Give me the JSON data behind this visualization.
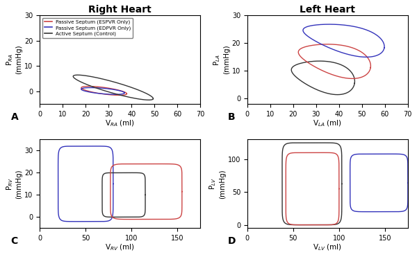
{
  "colors": {
    "red": "#CC4444",
    "blue": "#3333BB",
    "black": "#333333"
  },
  "legend_labels": [
    "Passive Septum (ESPVR Only)",
    "Passive Septum (EDPVR Only)",
    "Active Septum (Control)"
  ],
  "panels": {
    "A": {
      "xlabel": "V",
      "xlabel_sub": "RA",
      "xlabel_unit": " (ml)",
      "ylabel": "P",
      "ylabel_sub": "RA",
      "ylabel_unit": "\n(mmHg)",
      "xlim": [
        0,
        70
      ],
      "ylim": [
        -5,
        30
      ],
      "xticks": [
        0,
        10,
        20,
        30,
        40,
        50,
        60,
        70
      ],
      "yticks": [
        0,
        10,
        20,
        30
      ]
    },
    "B": {
      "xlabel": "V",
      "xlabel_sub": "LA",
      "xlabel_unit": " (ml)",
      "ylabel": "P",
      "ylabel_sub": "LA",
      "ylabel_unit": "\n(mmHg)",
      "xlim": [
        0,
        70
      ],
      "ylim": [
        -2,
        30
      ],
      "xticks": [
        0,
        10,
        20,
        30,
        40,
        50,
        60,
        70
      ],
      "yticks": [
        0,
        10,
        20,
        30
      ]
    },
    "C": {
      "xlabel": "V",
      "xlabel_sub": "RV",
      "xlabel_unit": " (ml)",
      "ylabel": "P",
      "ylabel_sub": "RV",
      "ylabel_unit": "\n(mmHg)",
      "xlim": [
        0,
        175
      ],
      "ylim": [
        -5,
        35
      ],
      "xticks": [
        0,
        50,
        100,
        150
      ],
      "yticks": [
        0,
        10,
        20,
        30
      ]
    },
    "D": {
      "xlabel": "V",
      "xlabel_sub": "LV",
      "xlabel_unit": " (ml)",
      "ylabel": "P",
      "ylabel_sub": "LV",
      "ylabel_unit": "\n(mmHg)",
      "xlim": [
        0,
        175
      ],
      "ylim": [
        -5,
        130
      ],
      "xticks": [
        0,
        50,
        100,
        150
      ],
      "yticks": [
        0,
        50,
        100
      ]
    }
  }
}
